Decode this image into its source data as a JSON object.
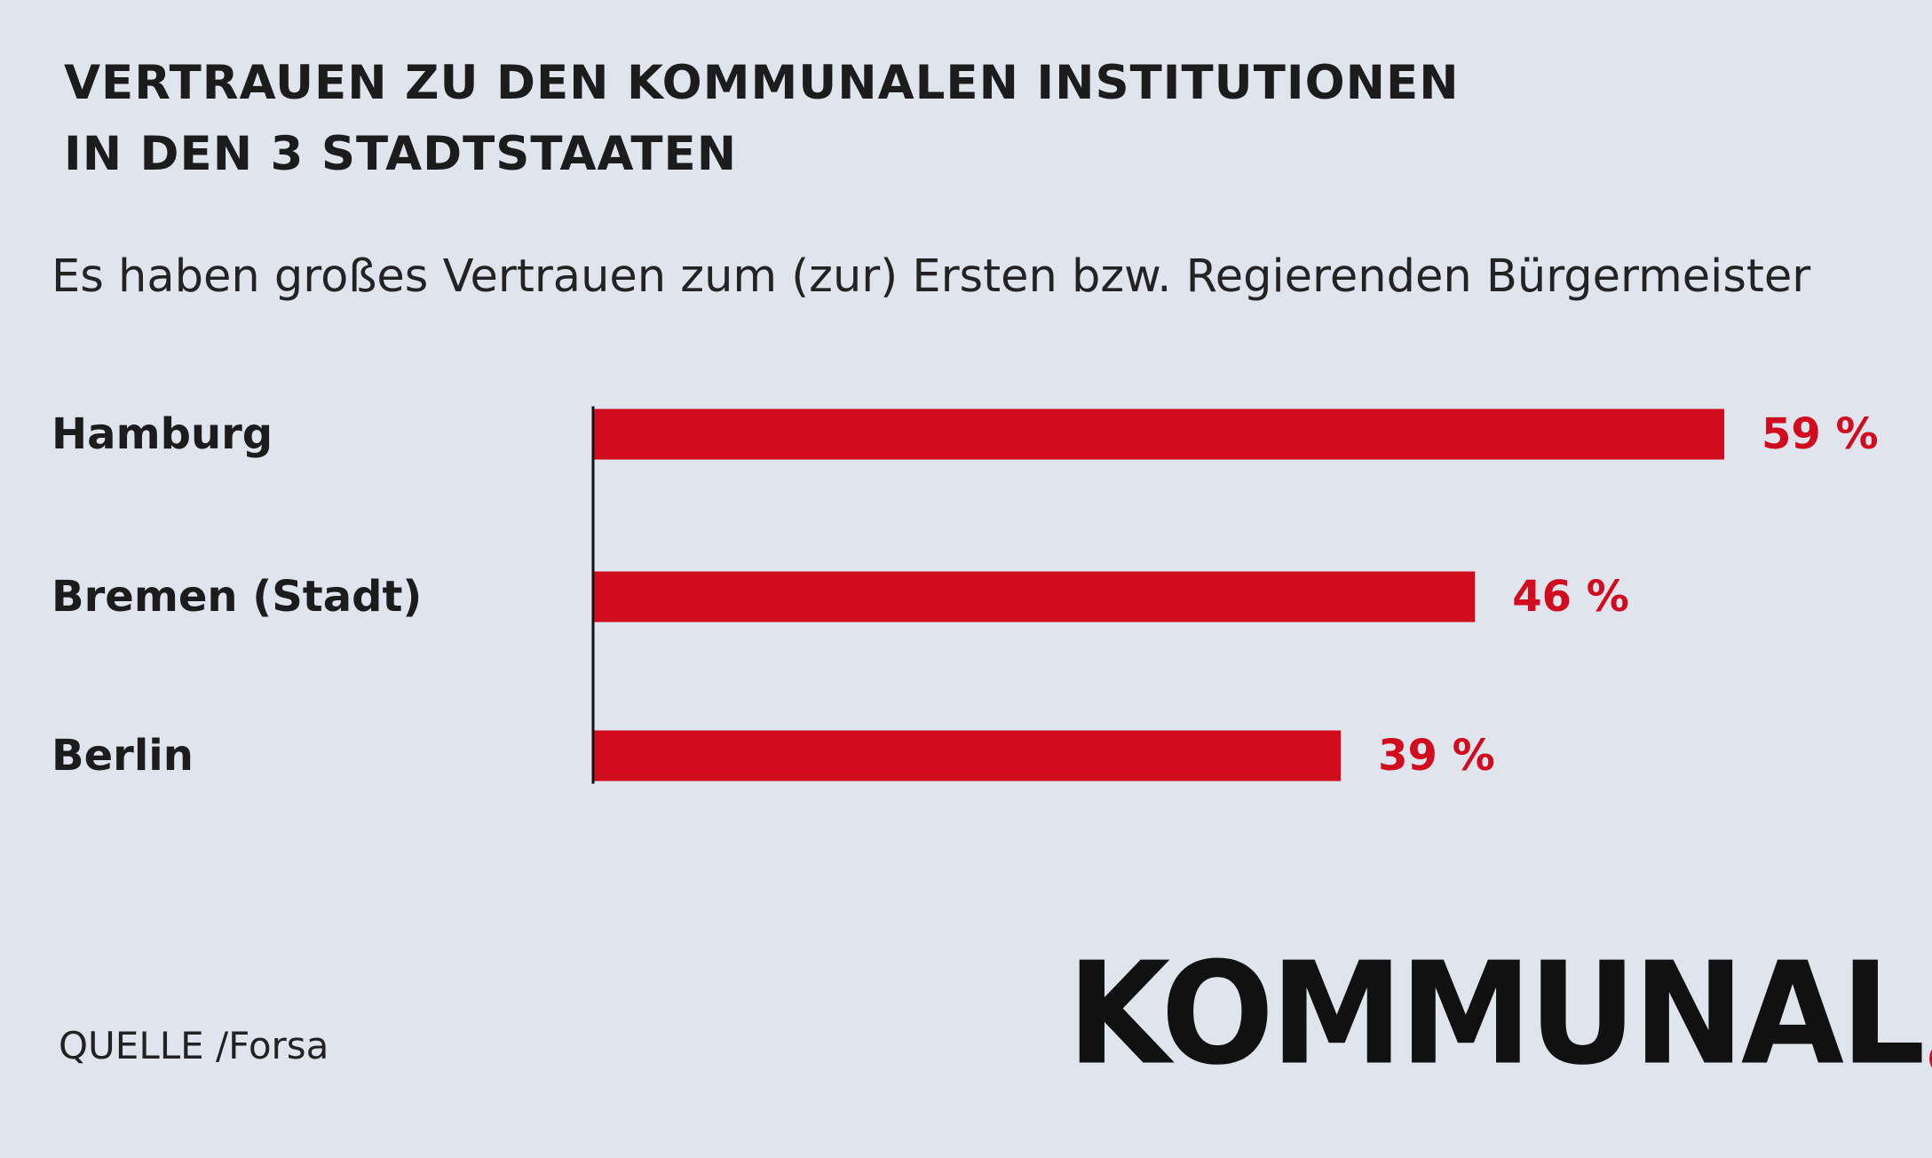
{
  "header": {
    "title_line1": "VERTRAUEN ZU DEN KOMMUNALEN INSTITUTIONEN",
    "title_line2": "IN DEN 3 STADTSTAATEN",
    "subtitle": "Es haben großes Vertrauen zum (zur) Ersten bzw. Regierenden Bürgermeister"
  },
  "footer": {
    "source": "QUELLE /Forsa",
    "logo_text": "KOMMUNAL"
  },
  "colors": {
    "background": "#dfe4ed",
    "bar": "#d00c1e",
    "value_label": "#d00c1e",
    "category_label": "#1c1c1c",
    "axis": "#111111",
    "logo_dot": "#d00c1e"
  },
  "chart_data": {
    "type": "bar",
    "orientation": "horizontal",
    "title": "VERTRAUEN ZU DEN KOMMUNALEN INSTITUTIONEN IN DEN 3 STADTSTAATEN",
    "subtitle": "Es haben großes Vertrauen zum (zur) Ersten bzw. Regierenden Bürgermeister",
    "categories": [
      "Hamburg",
      "Bremen (Stadt)",
      "Berlin"
    ],
    "values": [
      59,
      46,
      39
    ],
    "value_labels": [
      "59 %",
      "46 %",
      "39 %"
    ],
    "unit": "%",
    "xlim": [
      0,
      59
    ],
    "grid": false,
    "legend": "none"
  }
}
